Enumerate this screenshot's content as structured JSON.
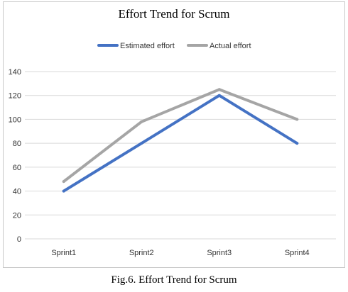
{
  "chart_data": {
    "type": "line",
    "title": "Effort Trend for Scrum",
    "categories": [
      "Sprint1",
      "Sprint2",
      "Sprint3",
      "Sprint4"
    ],
    "series": [
      {
        "name": "Estimated effort",
        "values": [
          40,
          80,
          120,
          80
        ],
        "color": "#4472c4"
      },
      {
        "name": "Actual effort",
        "values": [
          48,
          98,
          125,
          100
        ],
        "color": "#a5a5a5"
      }
    ],
    "yticks": [
      0,
      20,
      40,
      60,
      80,
      100,
      120,
      140
    ],
    "ylim": [
      0,
      140
    ],
    "xlabel": "",
    "ylabel": "",
    "grid": true,
    "legend_position": "top-center"
  },
  "caption": "Fig.6. Effort Trend for Scrum"
}
